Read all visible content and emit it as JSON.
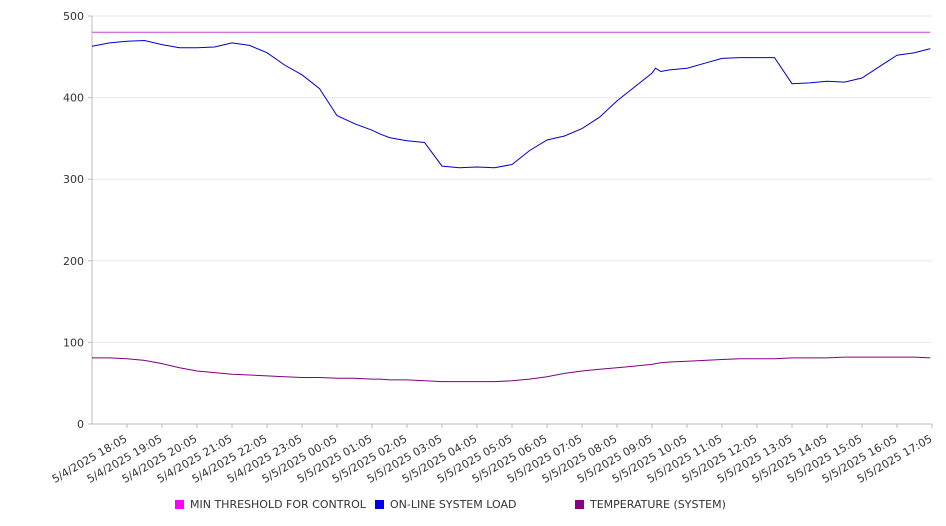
{
  "chart_data": {
    "type": "line",
    "title": "",
    "xlabel": "",
    "ylabel": "",
    "ylim": [
      0,
      500
    ],
    "y_ticks": [
      "0",
      "100",
      "200",
      "300",
      "400",
      "500"
    ],
    "x_ticks": [
      "5/4/2025 18:05",
      "5/4/2025 19:05",
      "5/4/2025 20:05",
      "5/4/2025 21:05",
      "5/4/2025 22:05",
      "5/4/2025 23:05",
      "5/5/2025 00:05",
      "5/5/2025 01:05",
      "5/5/2025 02:05",
      "5/5/2025 03:05",
      "5/5/2025 04:05",
      "5/5/2025 05:05",
      "5/5/2025 06:05",
      "5/5/2025 07:05",
      "5/5/2025 08:05",
      "5/5/2025 09:05",
      "5/5/2025 10:05",
      "5/5/2025 11:05",
      "5/5/2025 12:05",
      "5/5/2025 13:05",
      "5/5/2025 14:05",
      "5/5/2025 15:05",
      "5/5/2025 16:05",
      "5/5/2025 17:05"
    ],
    "x_hours": [
      0,
      0.5,
      1,
      1.5,
      2,
      2.5,
      3,
      3.5,
      4,
      4.5,
      5,
      5.5,
      6,
      6.5,
      7,
      7.5,
      8,
      8.25,
      8.5,
      8.75,
      9,
      9.5,
      10,
      10.5,
      11,
      11.5,
      12,
      12.5,
      13,
      13.5,
      14,
      14.5,
      15,
      15.5,
      16,
      16.1,
      16.25,
      16.5,
      17,
      17.5,
      18,
      18.5,
      19,
      19.5,
      20,
      20.5,
      21,
      21.5,
      22,
      22.5,
      23,
      23.5,
      23.95
    ],
    "grid": true,
    "legend_position": "bottom",
    "series": [
      {
        "name": "MIN THRESHOLD FOR CONTROL",
        "color": "#ff00ff",
        "line_color": "#cc44cc",
        "values": [
          480,
          480,
          480,
          480,
          480,
          480,
          480,
          480,
          480,
          480,
          480,
          480,
          480,
          480,
          480,
          480,
          480,
          480,
          480,
          480,
          480,
          480,
          480,
          480,
          480,
          480,
          480,
          480,
          480,
          480,
          480,
          480,
          480,
          480,
          480,
          480,
          480,
          480,
          480,
          480,
          480,
          480,
          480,
          480,
          480,
          480,
          480,
          480,
          480,
          480,
          480,
          480,
          480
        ]
      },
      {
        "name": "ON-LINE SYSTEM LOAD",
        "color": "#0000ee",
        "line_color": "#0000cc",
        "values": [
          463,
          467,
          469,
          470,
          465,
          461,
          461,
          462,
          467,
          464,
          455,
          440,
          428,
          411,
          378,
          368,
          360,
          355,
          351,
          349,
          347,
          345,
          316,
          314,
          315,
          314,
          318,
          335,
          348,
          353,
          362,
          376,
          396,
          413,
          430,
          436,
          432,
          434,
          436,
          442,
          448,
          449,
          449,
          449,
          417,
          418,
          420,
          419,
          424,
          438,
          452,
          455,
          460
        ]
      },
      {
        "name": "TEMPERATURE (SYSTEM)",
        "color": "#880088",
        "line_color": "#800080",
        "values": [
          81,
          81,
          80,
          78,
          74,
          69,
          65,
          63,
          61,
          60,
          59,
          58,
          57,
          57,
          56,
          56,
          55,
          55,
          54,
          54,
          54,
          53,
          52,
          52,
          52,
          52,
          53,
          55,
          58,
          62,
          65,
          67,
          69,
          71,
          73,
          74,
          75,
          76,
          77,
          78,
          79,
          80,
          80,
          80,
          81,
          81,
          81,
          82,
          82,
          82,
          82,
          82,
          81
        ]
      }
    ]
  }
}
